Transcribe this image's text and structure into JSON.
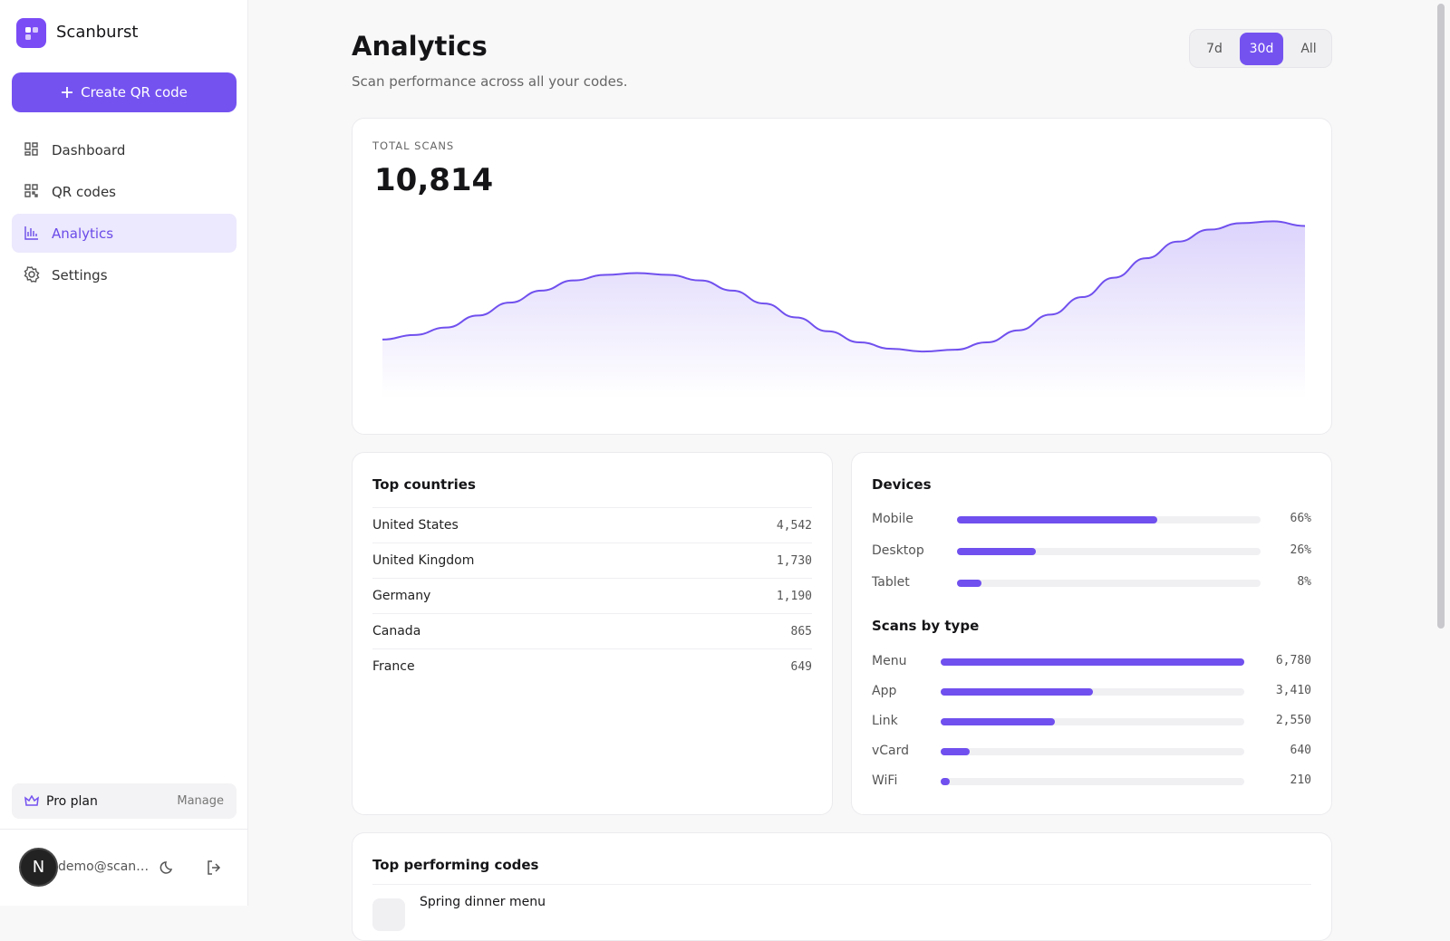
{
  "sidebar": {
    "brand": "Scanburst",
    "create_button": "Create QR code",
    "nav": [
      {
        "label": "Dashboard"
      },
      {
        "label": "QR codes"
      },
      {
        "label": "Analytics",
        "selected": true
      },
      {
        "label": "Settings"
      }
    ],
    "plan": {
      "label": "Pro plan",
      "action": "Manage"
    },
    "user": {
      "initial": "N",
      "email": "demo@scan…"
    }
  },
  "header": {
    "title": "Analytics",
    "subtitle": "Scan performance across all your codes.",
    "ranges": [
      {
        "label": "7d"
      },
      {
        "label": "30d",
        "selected": true
      },
      {
        "label": "All"
      }
    ]
  },
  "total_scans": {
    "label": "TOTAL SCANS",
    "value": "10,814",
    "trend": {
      "type": "area",
      "color": "#7050ee",
      "ylim": [
        0,
        200
      ],
      "values": [
        54,
        59,
        67,
        80,
        94,
        107,
        118,
        124,
        126,
        124,
        118,
        107,
        93,
        78,
        63,
        51,
        44,
        41,
        43,
        51,
        64,
        81,
        100,
        121,
        142,
        160,
        173,
        180,
        182,
        177
      ]
    }
  },
  "top_countries": {
    "title": "Top countries",
    "rows": [
      [
        "United States",
        "4,542"
      ],
      [
        "United Kingdom",
        "1,730"
      ],
      [
        "Germany",
        "1,190"
      ],
      [
        "Canada",
        "865"
      ],
      [
        "France",
        "649"
      ]
    ]
  },
  "devices": {
    "title": "Devices",
    "type": "bar",
    "color": "#7050ee",
    "xlim": [
      0,
      100
    ],
    "categories": [
      "Mobile",
      "Desktop",
      "Tablet"
    ],
    "values": [
      66,
      26,
      8
    ],
    "value_labels": [
      "66%",
      "26%",
      "8%"
    ]
  },
  "scans_by_type": {
    "title": "Scans by type",
    "type": "bar",
    "color": "#7050ee",
    "xlim": [
      0,
      6780
    ],
    "categories": [
      "Menu",
      "App",
      "Link",
      "vCard",
      "WiFi"
    ],
    "values": [
      6780,
      3410,
      2550,
      640,
      210
    ],
    "value_labels": [
      "6,780",
      "3,410",
      "2,550",
      "640",
      "210"
    ]
  },
  "top_codes": {
    "title": "Top performing codes",
    "rows": [
      {
        "name": "Spring dinner menu"
      }
    ]
  }
}
